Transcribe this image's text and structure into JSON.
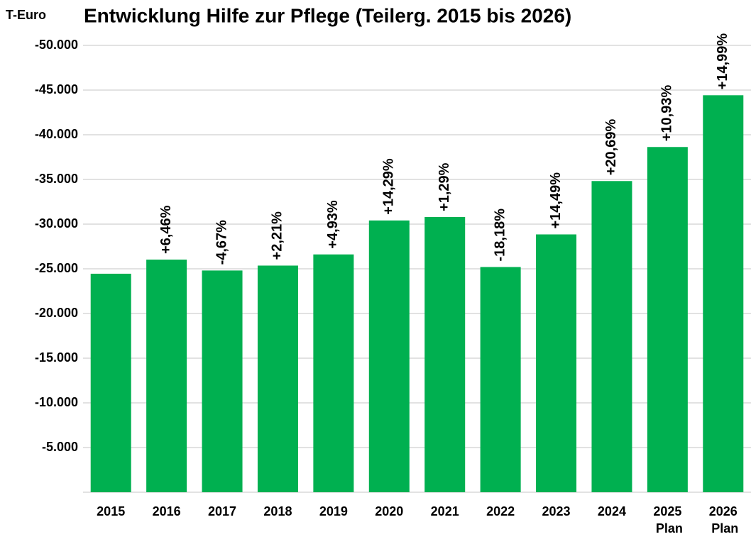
{
  "chart_data": {
    "type": "bar",
    "title": "Entwicklung Hilfe zur Pflege (Teilerg. 2015 bis 2026)",
    "y_unit": "T-Euro",
    "categories": [
      "2015",
      "2016",
      "2017",
      "2018",
      "2019",
      "2020",
      "2021",
      "2022",
      "2023",
      "2024",
      "2025 Plan",
      "2026 Plan"
    ],
    "values": [
      -24450,
      -26030,
      -24810,
      -25360,
      -26610,
      -30410,
      -30800,
      -25200,
      -28850,
      -34820,
      -38630,
      -44420
    ],
    "change_labels": [
      null,
      "+6,46%",
      "-4,67%",
      "+2,21%",
      "+4,93%",
      "+14,29%",
      "+1,29%",
      "-18,18%",
      "+14,49%",
      "+20,69%",
      "+10,93%",
      "+14,99%"
    ],
    "color": "#00b050",
    "ylim": [
      0,
      -50000
    ],
    "yticks": [
      {
        "value": -5000,
        "label": "-5.000"
      },
      {
        "value": -10000,
        "label": "-10.000"
      },
      {
        "value": -15000,
        "label": "-15.000"
      },
      {
        "value": -20000,
        "label": "-20.000"
      },
      {
        "value": -25000,
        "label": "-25.000"
      },
      {
        "value": -30000,
        "label": "-30.000"
      },
      {
        "value": -35000,
        "label": "-35.000"
      },
      {
        "value": -40000,
        "label": "-40.000"
      },
      {
        "value": -45000,
        "label": "-45.000"
      },
      {
        "value": -50000,
        "label": "-50.000"
      }
    ],
    "grid": true
  }
}
